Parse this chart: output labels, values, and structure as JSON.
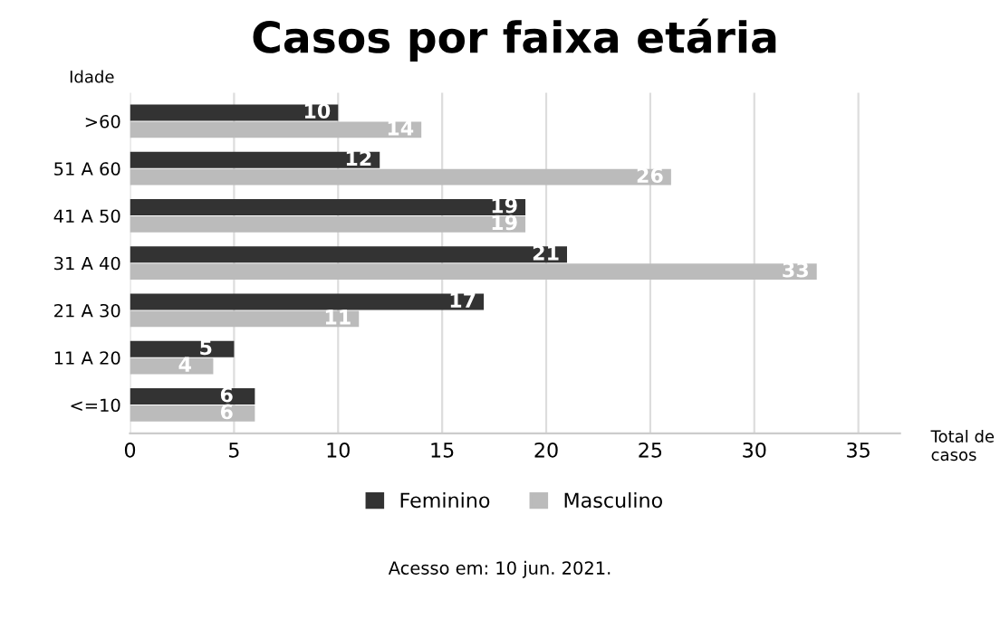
{
  "chart_data": {
    "type": "bar",
    "orientation": "horizontal",
    "title": "Casos por faixa etária",
    "ylabel": "Idade",
    "xlabel": "Total de\ncasos",
    "categories": [
      ">60",
      "51 A 60",
      "41 A 50",
      "31 A 40",
      "21 A 30",
      "11 A 20",
      "<=10"
    ],
    "series": [
      {
        "name": "Feminino",
        "color": "#333333",
        "values": [
          10,
          12,
          19,
          21,
          17,
          5,
          6
        ]
      },
      {
        "name": "Masculino",
        "color": "#bbbbbb",
        "values": [
          14,
          26,
          19,
          33,
          11,
          4,
          6
        ]
      }
    ],
    "xlim": [
      0,
      37
    ],
    "xticks": [
      0,
      5,
      10,
      15,
      20,
      25,
      30,
      35
    ],
    "grid": "x",
    "legend": "bottom",
    "data_labels": true,
    "annotations": [
      "Acesso em: 10 jun. 2021."
    ]
  }
}
